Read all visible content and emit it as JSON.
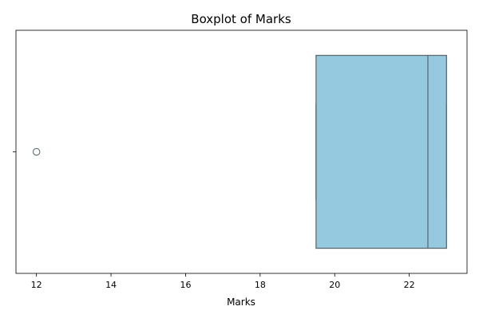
{
  "chart_data": {
    "type": "boxplot",
    "title": "Boxplot of Marks",
    "xlabel": "Marks",
    "ylabel": "",
    "orientation": "horizontal",
    "xlim": [
      11.45,
      23.55
    ],
    "xticks": [
      12,
      14,
      16,
      18,
      20,
      22
    ],
    "yticks": [
      ""
    ],
    "grid": false,
    "legend": "none",
    "series": [
      {
        "stats": {
          "whisker_low": 19.5,
          "q1": 19.5,
          "median": 22.5,
          "q3": 23,
          "whisker_high": 23
        },
        "outliers": [
          12
        ]
      }
    ],
    "colors": {
      "box_fill": "#95c9df",
      "box_edge": "#5f6c74",
      "axes": "#000000",
      "outlier_edge": "#5f6c74"
    }
  }
}
